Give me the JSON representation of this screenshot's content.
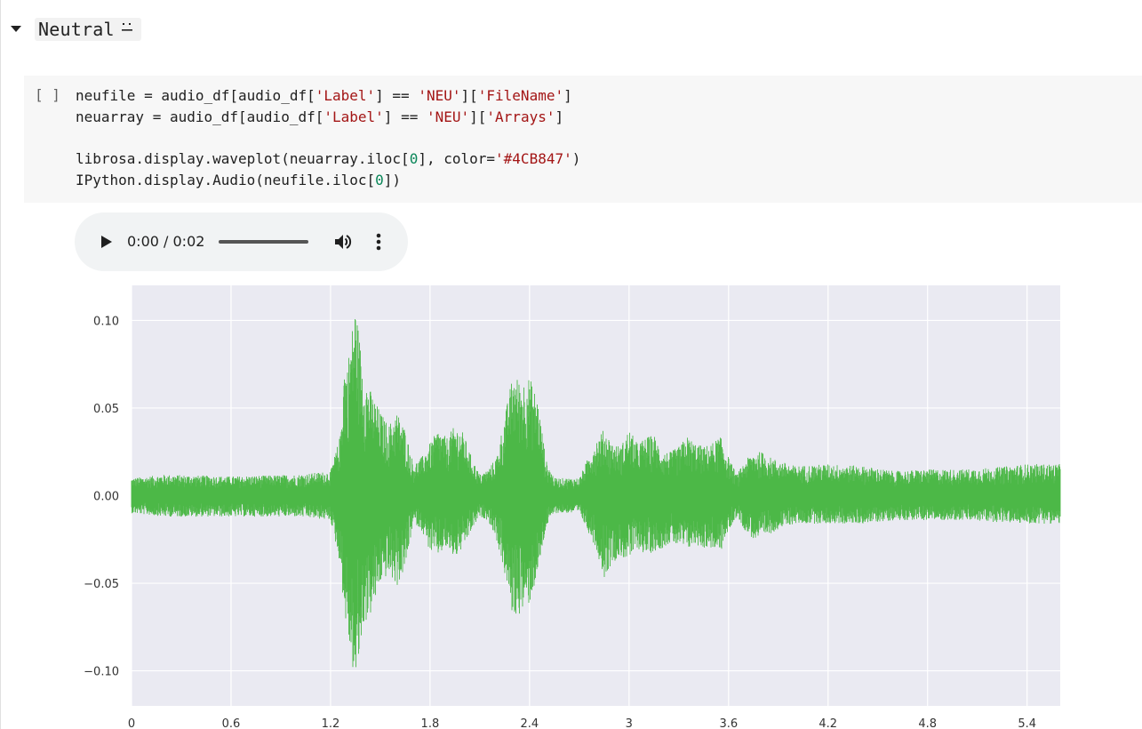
{
  "section": {
    "title": "Neutral",
    "emoji": "😐"
  },
  "code_cell": {
    "run_indicator": "[ ]",
    "lines": [
      [
        {
          "t": "neufile = audio_df[audio_df[",
          "c": ""
        },
        {
          "t": "'Label'",
          "c": "str"
        },
        {
          "t": "] == ",
          "c": ""
        },
        {
          "t": "'NEU'",
          "c": "str"
        },
        {
          "t": "][",
          "c": ""
        },
        {
          "t": "'FileName'",
          "c": "str"
        },
        {
          "t": "]",
          "c": ""
        }
      ],
      [
        {
          "t": "neuarray = audio_df[audio_df[",
          "c": ""
        },
        {
          "t": "'Label'",
          "c": "str"
        },
        {
          "t": "] == ",
          "c": ""
        },
        {
          "t": "'NEU'",
          "c": "str"
        },
        {
          "t": "][",
          "c": ""
        },
        {
          "t": "'Arrays'",
          "c": "str"
        },
        {
          "t": "]",
          "c": ""
        }
      ],
      [],
      [
        {
          "t": "librosa.display.waveplot(neuarray.iloc[",
          "c": ""
        },
        {
          "t": "0",
          "c": "num"
        },
        {
          "t": "], color=",
          "c": ""
        },
        {
          "t": "'#4CB847'",
          "c": "str"
        },
        {
          "t": ")",
          "c": ""
        }
      ],
      [
        {
          "t": "IPython.display.Audio(neufile.iloc[",
          "c": ""
        },
        {
          "t": "0",
          "c": "num"
        },
        {
          "t": "])",
          "c": ""
        }
      ]
    ]
  },
  "audio_player": {
    "time": "0:00 / 0:02",
    "icons": {
      "play": "play-icon",
      "volume": "volume-icon",
      "more": "more-vertical-icon"
    }
  },
  "colors": {
    "waveform": "#4CB847",
    "plot_background": "#EAEAF2",
    "grid": "#FFFFFF",
    "string_literal": "#A31515",
    "number_literal": "#098658"
  },
  "chart_data": {
    "type": "area",
    "title": "",
    "xlabel": "",
    "ylabel": "",
    "xlim": [
      0,
      5.6
    ],
    "ylim": [
      -0.12,
      0.12
    ],
    "x_ticks": [
      0,
      0.6,
      1.2,
      1.8,
      2.4,
      3.0,
      3.6,
      4.2,
      4.8,
      5.4
    ],
    "x_tick_labels": [
      "0",
      "0.6",
      "1.2",
      "1.8",
      "2.4",
      "3",
      "3.6",
      "4.2",
      "4.8",
      "5.4"
    ],
    "y_ticks": [
      0.1,
      0.05,
      0.0,
      -0.05,
      -0.1
    ],
    "y_tick_labels": [
      "0.10",
      "0.05",
      "0.00",
      "−0.05",
      "−0.10"
    ],
    "grid": true,
    "series": [
      {
        "color": "#4CB847",
        "envelope_x": [
          0.0,
          0.2,
          0.6,
          1.0,
          1.2,
          1.26,
          1.28,
          1.3,
          1.35,
          1.4,
          1.45,
          1.5,
          1.55,
          1.6,
          1.65,
          1.7,
          1.75,
          1.8,
          1.85,
          1.9,
          1.95,
          2.0,
          2.05,
          2.1,
          2.15,
          2.2,
          2.25,
          2.3,
          2.35,
          2.4,
          2.45,
          2.5,
          2.55,
          2.6,
          2.7,
          2.8,
          2.85,
          2.9,
          2.95,
          3.0,
          3.05,
          3.1,
          3.15,
          3.2,
          3.25,
          3.3,
          3.35,
          3.4,
          3.45,
          3.5,
          3.55,
          3.6,
          3.65,
          3.7,
          3.75,
          3.8,
          3.85,
          3.9,
          4.0,
          4.2,
          4.4,
          4.6,
          4.8,
          5.0,
          5.2,
          5.4,
          5.6
        ],
        "envelope_upper": [
          0.01,
          0.012,
          0.011,
          0.012,
          0.014,
          0.035,
          0.075,
          0.074,
          0.11,
          0.07,
          0.058,
          0.048,
          0.04,
          0.048,
          0.038,
          0.018,
          0.022,
          0.03,
          0.038,
          0.033,
          0.04,
          0.036,
          0.022,
          0.012,
          0.015,
          0.022,
          0.045,
          0.07,
          0.065,
          0.068,
          0.055,
          0.02,
          0.01,
          0.01,
          0.01,
          0.032,
          0.038,
          0.03,
          0.028,
          0.038,
          0.03,
          0.033,
          0.035,
          0.025,
          0.025,
          0.028,
          0.034,
          0.03,
          0.028,
          0.03,
          0.034,
          0.022,
          0.012,
          0.02,
          0.025,
          0.025,
          0.022,
          0.02,
          0.017,
          0.018,
          0.017,
          0.014,
          0.015,
          0.015,
          0.016,
          0.018,
          0.018
        ],
        "envelope_lower": [
          -0.01,
          -0.012,
          -0.012,
          -0.012,
          -0.014,
          -0.04,
          -0.065,
          -0.078,
          -0.11,
          -0.074,
          -0.067,
          -0.05,
          -0.045,
          -0.052,
          -0.042,
          -0.015,
          -0.02,
          -0.032,
          -0.034,
          -0.03,
          -0.036,
          -0.03,
          -0.02,
          -0.012,
          -0.014,
          -0.025,
          -0.045,
          -0.07,
          -0.067,
          -0.062,
          -0.045,
          -0.018,
          -0.01,
          -0.01,
          -0.01,
          -0.03,
          -0.047,
          -0.038,
          -0.035,
          -0.037,
          -0.03,
          -0.034,
          -0.032,
          -0.03,
          -0.027,
          -0.029,
          -0.031,
          -0.028,
          -0.03,
          -0.03,
          -0.033,
          -0.02,
          -0.012,
          -0.02,
          -0.025,
          -0.025,
          -0.022,
          -0.019,
          -0.016,
          -0.016,
          -0.016,
          -0.014,
          -0.014,
          -0.014,
          -0.015,
          -0.016,
          -0.016
        ]
      }
    ]
  }
}
